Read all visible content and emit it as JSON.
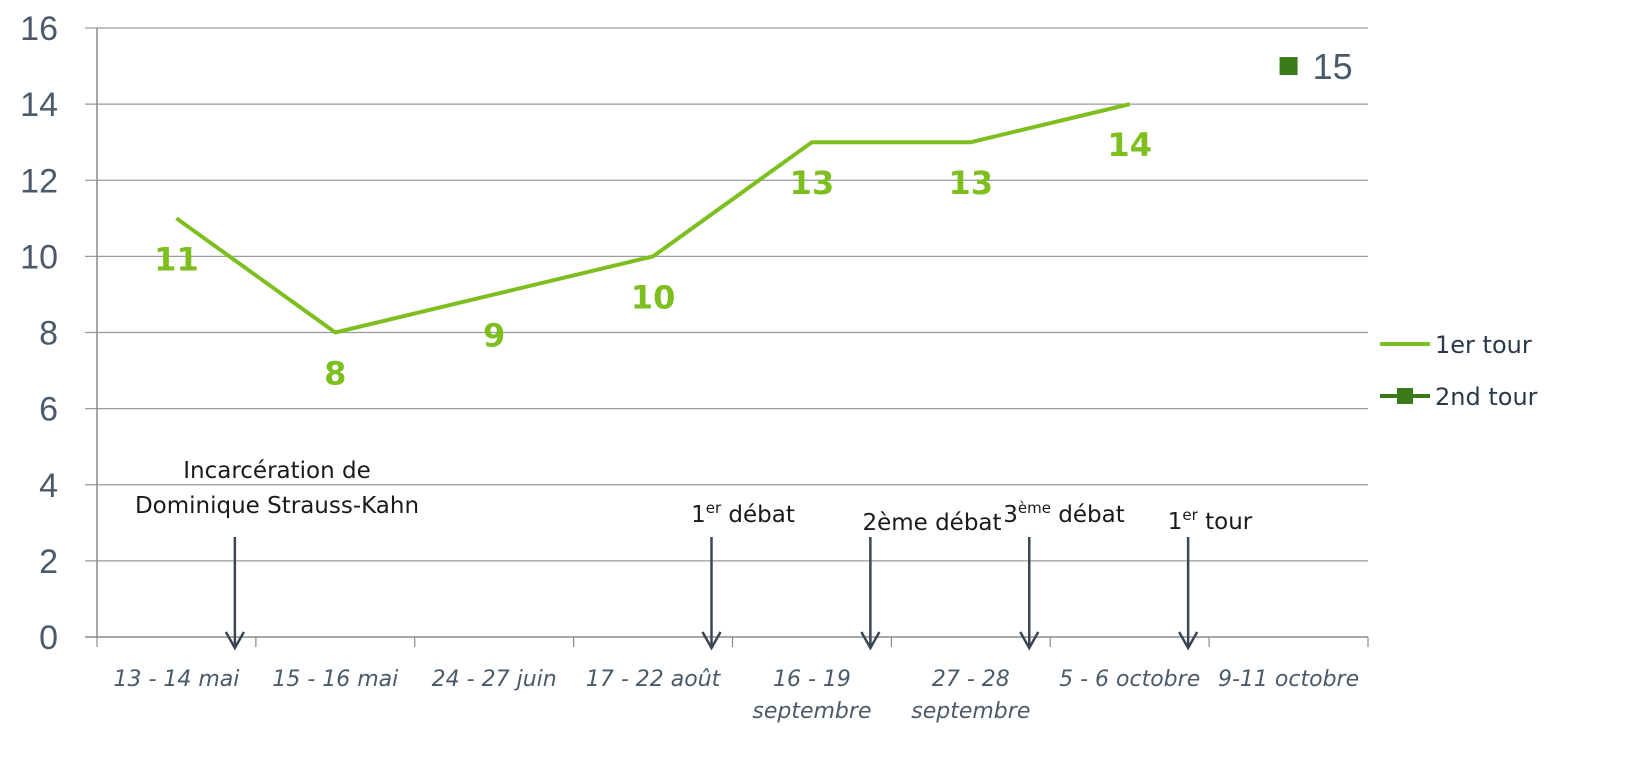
{
  "chart_data": {
    "type": "line",
    "categories": [
      "13 - 14 mai",
      "15 - 16 mai",
      "24 - 27 juin",
      "17 - 22 août",
      "16 - 19 septembre",
      "27 - 28 septembre",
      "5 - 6 octobre",
      "9-11 octobre"
    ],
    "category_lines": [
      [
        "13 - 14 mai"
      ],
      [
        "15 - 16 mai"
      ],
      [
        "24 - 27 juin"
      ],
      [
        "17 - 22 août"
      ],
      [
        "16 - 19",
        "septembre"
      ],
      [
        "27 - 28",
        "septembre"
      ],
      [
        "5 - 6 octobre"
      ],
      [
        "9-11 octobre"
      ]
    ],
    "ylim": [
      0,
      16
    ],
    "yticks": [
      "0",
      "2",
      "4",
      "6",
      "8",
      "10",
      "12",
      "14",
      "16"
    ],
    "grid": true,
    "legend_position": "right",
    "series": [
      {
        "name": "1er tour",
        "values": [
          11,
          8,
          9,
          10,
          13,
          13,
          14,
          null
        ],
        "color": "#7dbf1e",
        "labels": [
          "11",
          "8",
          "9",
          "10",
          "13",
          "13",
          "14",
          ""
        ]
      },
      {
        "name": "2nd tour",
        "values": [
          null,
          null,
          null,
          null,
          null,
          null,
          null,
          15
        ],
        "color": "#3a7a1a",
        "labels": [
          "",
          "",
          "",
          "",
          "",
          "",
          "",
          "15"
        ]
      }
    ],
    "annotations": [
      {
        "lines": [
          "Incarcération de",
          "Dominique Strauss-Kahn"
        ]
      },
      {
        "prefix": "1",
        "sup": "er",
        "suffix": " débat"
      },
      {
        "prefix": "2ème débat",
        "sup": "",
        "suffix": ""
      },
      {
        "prefix": "3",
        "sup": "ème",
        "suffix": " débat"
      },
      {
        "prefix": "1",
        "sup": "er",
        "suffix": " tour"
      }
    ]
  }
}
